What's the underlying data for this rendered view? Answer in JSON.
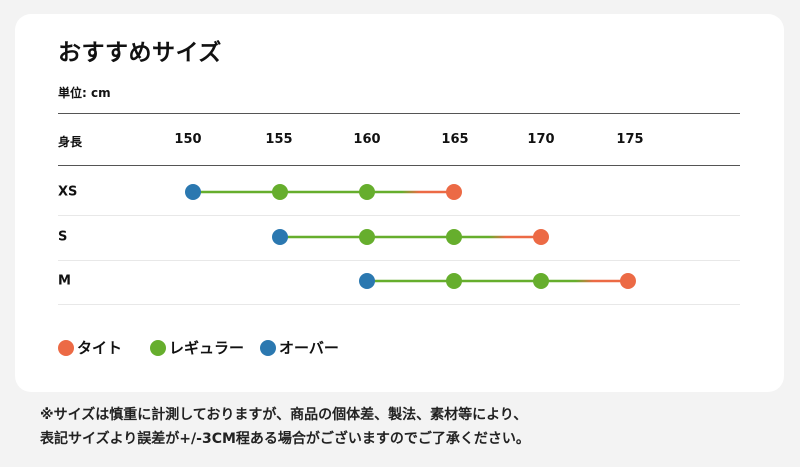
{
  "title": "おすすめサイズ",
  "unit": "単位: cm",
  "axis_label": "身長",
  "note_lines": [
    "※サイズは慎重に計測しておりますが、商品の個体差、製法、素材等により、",
    "表記サイズより誤差が+/-3CM程ある場合がございますのでご了承ください。"
  ],
  "legend": [
    {
      "label": "タイト",
      "color": "#ec6a45"
    },
    {
      "label": "レギュラー",
      "color": "#66ae2d"
    },
    {
      "label": "オーバー",
      "color": "#2b78b0"
    }
  ],
  "chart_data": {
    "type": "scatter",
    "title": "おすすめサイズ",
    "xlabel": "身長",
    "unit": "cm",
    "ticks": [
      "150",
      "155",
      "160",
      "165",
      "170",
      "175"
    ],
    "xlim": [
      150,
      175
    ],
    "rows": [
      {
        "size": "XS",
        "over": 150,
        "regular": [
          155,
          160
        ],
        "tight": 165
      },
      {
        "size": "S",
        "over": 155,
        "regular": [
          160,
          165
        ],
        "tight": 170
      },
      {
        "size": "M",
        "over": 160,
        "regular": [
          165,
          170
        ],
        "tight": 175
      }
    ],
    "colors": {
      "tight": "#ec6a45",
      "regular": "#66ae2d",
      "over": "#2b78b0"
    }
  }
}
